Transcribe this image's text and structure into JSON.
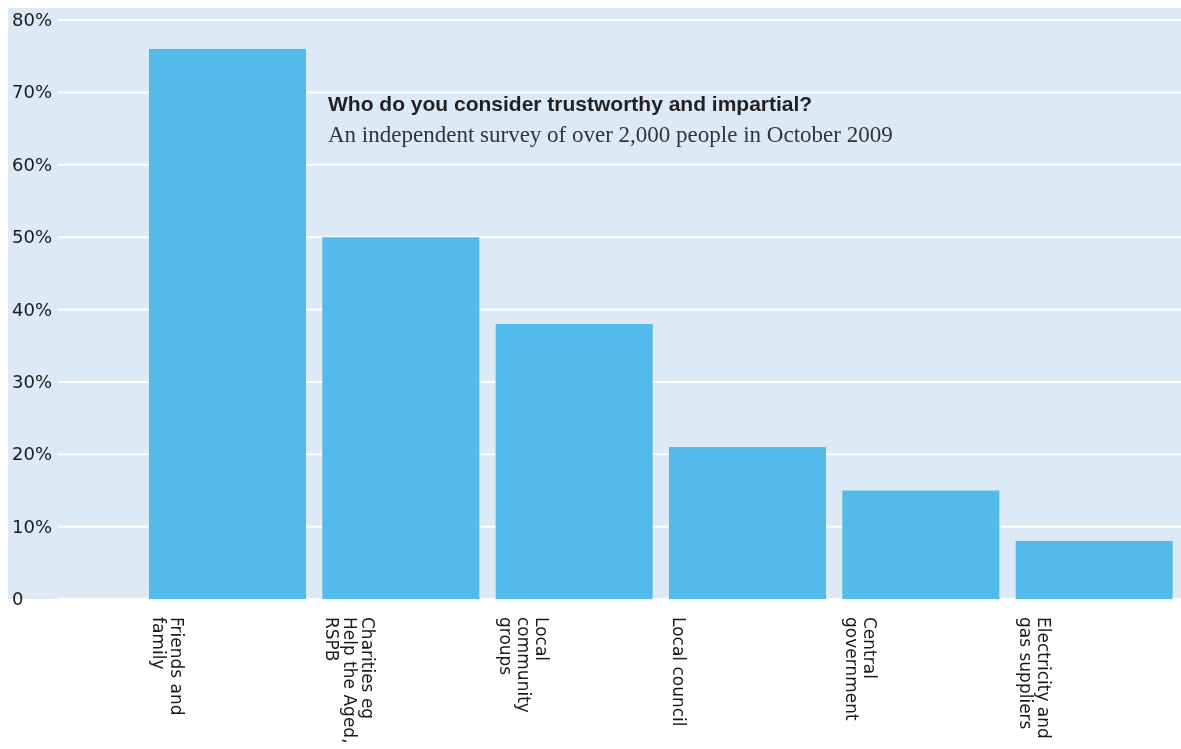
{
  "chart_data": {
    "type": "bar",
    "title": "Who do you consider trustworthy and impartial?",
    "subtitle": "An independent survey of over 2,000 people in October 2009",
    "categories": [
      "Friends and\nfamily",
      "Charities eg\nHelp the Aged,\nRSPB",
      "Local\ncommunity\ngroups",
      "Local council",
      "Central\ngovernment",
      "Electricity and\ngas suppliers"
    ],
    "values": [
      76,
      50,
      38,
      21,
      15,
      8
    ],
    "color": "#53bbe9",
    "ylim": [
      0,
      80
    ],
    "yticks": [
      {
        "value": 0,
        "label": "0"
      },
      {
        "value": 10,
        "label": "10%"
      },
      {
        "value": 20,
        "label": "20%"
      },
      {
        "value": 30,
        "label": "30%"
      },
      {
        "value": 40,
        "label": "40%"
      },
      {
        "value": 50,
        "label": "50%"
      },
      {
        "value": 60,
        "label": "60%"
      },
      {
        "value": 70,
        "label": "70%"
      },
      {
        "value": 80,
        "label": "80%"
      }
    ],
    "grid": "y",
    "legend": false
  }
}
